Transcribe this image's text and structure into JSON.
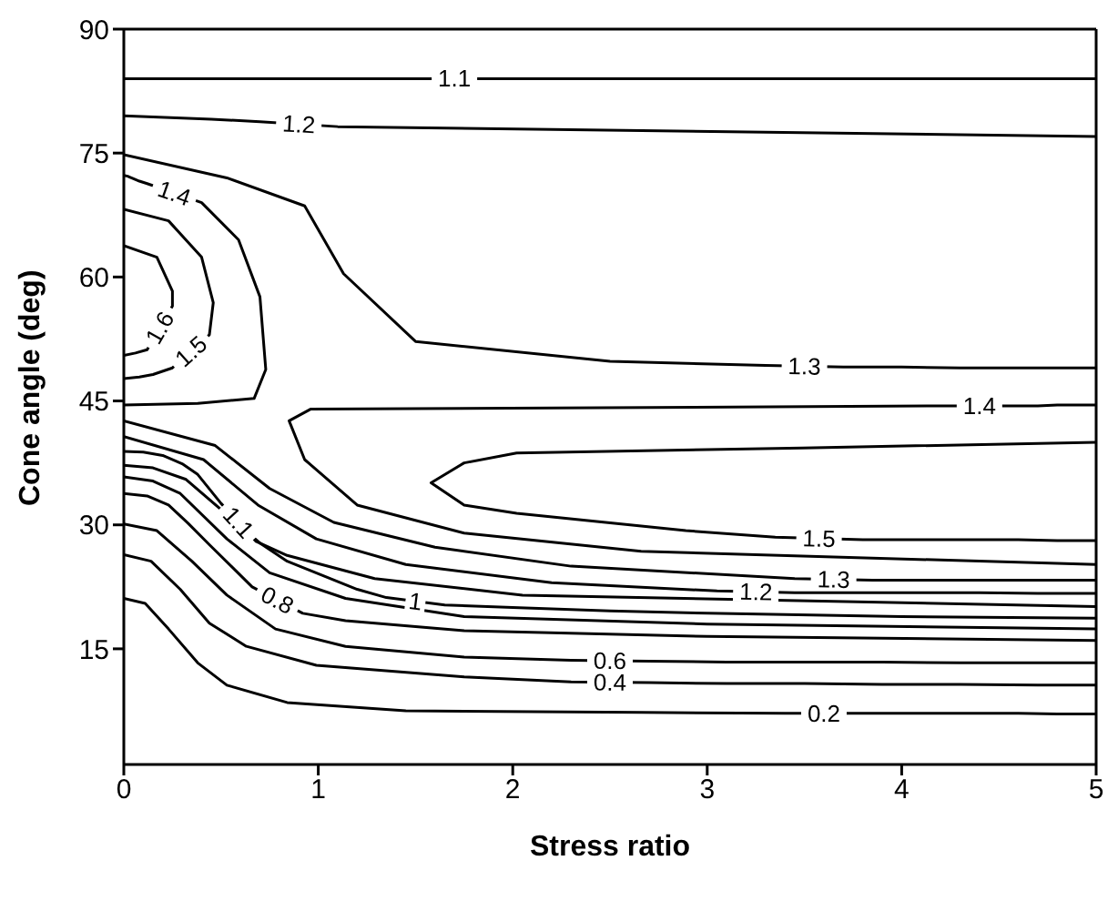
{
  "chart_data": {
    "type": "line",
    "xlabel": "Stress ratio",
    "ylabel": "Cone angle (deg)",
    "xlim": [
      0,
      5
    ],
    "xticks": [
      0,
      1,
      2,
      3,
      4,
      5
    ],
    "ylim": [
      1,
      90
    ],
    "yticks": [
      15,
      30,
      45,
      60,
      75,
      90
    ],
    "grid": false,
    "marker": "none",
    "line_style": "solid",
    "series": [
      {
        "name": "1.1",
        "color": "#000000",
        "x": [
          0,
          0.7,
          1.4,
          2.0,
          5
        ],
        "values": [
          84.0,
          84.0,
          84.0,
          84.0,
          84.0
        ]
      },
      {
        "name": "1.2",
        "color": "#000000",
        "x": [
          0,
          0.45,
          0.7,
          1.1,
          5
        ],
        "values": [
          79.5,
          79.1,
          78.8,
          78.2,
          77.0
        ]
      },
      {
        "name": "1.3",
        "color": "#000000",
        "x": [
          0,
          0.53,
          0.93,
          1.13,
          1.5,
          2.5,
          3.3,
          3.7,
          4.0,
          4.3,
          4.6,
          4.8,
          5
        ],
        "values": [
          74.8,
          72.0,
          68.6,
          60.4,
          52.2,
          49.8,
          49.3,
          49.1,
          49.1,
          49.0,
          49.0,
          49.0,
          49.0
        ]
      },
      {
        "name": "1.4",
        "color": "#000000",
        "x": [
          0,
          0.38,
          0.67,
          0.73,
          0.7,
          0.59,
          0.4,
          0.12,
          0.08,
          0.05,
          0.03,
          0.02,
          0
        ],
        "values": [
          44.5,
          44.7,
          45.3,
          48.8,
          57.6,
          64.5,
          69.0,
          71.3,
          71.6,
          71.9,
          72.1,
          72.2,
          72.3
        ]
      },
      {
        "name": "1.5",
        "color": "#000000",
        "x": [
          0,
          0.23,
          0.4,
          0.46,
          0.44,
          0.25,
          0.15,
          0.08,
          0
        ],
        "values": [
          68.2,
          66.8,
          62.4,
          56.9,
          53.0,
          49.0,
          48.2,
          47.9,
          47.7
        ]
      },
      {
        "name": "1.6",
        "color": "#000000",
        "x": [
          0,
          0.17,
          0.25,
          0.25,
          0.12,
          0.06,
          0
        ],
        "values": [
          63.8,
          62.4,
          58.3,
          56.5,
          51.2,
          50.8,
          50.5
        ]
      },
      {
        "name": "1.4",
        "color": "#000000",
        "x": [
          5,
          2.66,
          1.75,
          1.2,
          0.93,
          0.85,
          0.96,
          4.2,
          4.6,
          4.7,
          4.8,
          4.85,
          4.9,
          4.95,
          5
        ],
        "values": [
          25.2,
          26.8,
          29.0,
          32.4,
          37.9,
          42.6,
          44.0,
          44.4,
          44.4,
          44.4,
          44.5,
          44.5,
          44.5,
          44.5,
          44.5
        ]
      },
      {
        "name": "1.5",
        "color": "#000000",
        "x": [
          5,
          3.49,
          2.02,
          1.75,
          1.58,
          1.75,
          2.02,
          2.89,
          3.35,
          3.8,
          4.0,
          4.2,
          4.4,
          4.6,
          4.8,
          4.9,
          5
        ],
        "values": [
          40.0,
          39.3,
          38.7,
          37.5,
          35.1,
          32.4,
          31.4,
          29.3,
          28.5,
          28.2,
          28.2,
          28.2,
          28.2,
          28.2,
          28.1,
          28.1,
          28.1
        ]
      },
      {
        "name": "1.3",
        "color": "#000000",
        "x": [
          0,
          0.47,
          0.75,
          1.08,
          1.6,
          2.3,
          3.45,
          3.85,
          4.1,
          4.4,
          4.6,
          4.8,
          5
        ],
        "values": [
          42.6,
          39.6,
          34.4,
          30.3,
          27.3,
          25.0,
          23.5,
          23.3,
          23.3,
          23.3,
          23.3,
          23.3,
          23.3
        ]
      },
      {
        "name": "1.2",
        "color": "#000000",
        "x": [
          0,
          0.41,
          0.69,
          0.99,
          1.45,
          2.2,
          3.05,
          3.45,
          3.8,
          4.1,
          4.4,
          4.7,
          5
        ],
        "values": [
          40.7,
          37.9,
          32.4,
          28.3,
          25.2,
          23.0,
          22.0,
          21.8,
          21.8,
          21.8,
          21.8,
          21.7,
          21.7
        ]
      },
      {
        "name": "1.1",
        "color": "#000000",
        "x": [
          0,
          0.1,
          0.2,
          0.3,
          0.38,
          0.5,
          0.68,
          0.84,
          1.29,
          2.05,
          5
        ],
        "values": [
          38.9,
          38.8,
          38.4,
          37.4,
          36.1,
          32.6,
          28.0,
          26.3,
          23.5,
          21.5,
          20.1
        ]
      },
      {
        "name": "1",
        "color": "#000000",
        "x": [
          0,
          0.15,
          0.32,
          0.7,
          0.84,
          1.2,
          1.35,
          1.65,
          2.0,
          2.5,
          3.0,
          4.0,
          5
        ],
        "values": [
          37.2,
          36.9,
          35.5,
          27.8,
          25.6,
          22.2,
          21.2,
          20.3,
          20.0,
          19.6,
          19.3,
          18.9,
          18.7
        ]
      },
      {
        "color": "#000000",
        "x": [
          0,
          0.15,
          0.29,
          0.53,
          0.75,
          1.14,
          1.75,
          3,
          5
        ],
        "values": [
          35.8,
          35.3,
          33.8,
          28.3,
          24.2,
          21.1,
          18.9,
          18.0,
          17.4
        ]
      },
      {
        "name": "0.8",
        "color": "#000000",
        "x": [
          0,
          0.12,
          0.23,
          0.33,
          0.44,
          0.66,
          0.92,
          1.14,
          1.75,
          3,
          5
        ],
        "values": [
          33.8,
          33.5,
          32.4,
          30.2,
          27.6,
          22.5,
          19.3,
          18.4,
          17.2,
          16.5,
          16.0
        ]
      },
      {
        "name": "0.6",
        "color": "#000000",
        "x": [
          0,
          0.17,
          0.35,
          0.53,
          0.78,
          1.14,
          1.75,
          2.3,
          2.7,
          3.1,
          3.5,
          3.9,
          4.3,
          4.7,
          5
        ],
        "values": [
          30.1,
          29.3,
          25.6,
          21.5,
          17.4,
          15.3,
          14.0,
          13.6,
          13.5,
          13.4,
          13.4,
          13.4,
          13.3,
          13.3,
          13.3
        ]
      },
      {
        "name": "0.4",
        "color": "#000000",
        "x": [
          0,
          0.14,
          0.29,
          0.44,
          0.63,
          0.99,
          1.75,
          2.3,
          2.7,
          3.1,
          3.5,
          3.9,
          4.3,
          4.7,
          5
        ],
        "values": [
          26.4,
          25.6,
          22.2,
          18.1,
          15.3,
          13.0,
          11.6,
          11.0,
          10.9,
          10.8,
          10.8,
          10.7,
          10.7,
          10.6,
          10.6
        ]
      },
      {
        "name": "0.2",
        "color": "#000000",
        "x": [
          0,
          0.11,
          0.23,
          0.38,
          0.53,
          0.84,
          1.45,
          2.66,
          3.4,
          3.8,
          4.0,
          4.2,
          4.4,
          4.6,
          4.8,
          4.9,
          5
        ],
        "values": [
          21.1,
          20.5,
          17.4,
          13.3,
          10.6,
          8.5,
          7.5,
          7.3,
          7.2,
          7.2,
          7.2,
          7.2,
          7.2,
          7.2,
          7.1,
          7.1,
          7.1
        ]
      }
    ]
  }
}
